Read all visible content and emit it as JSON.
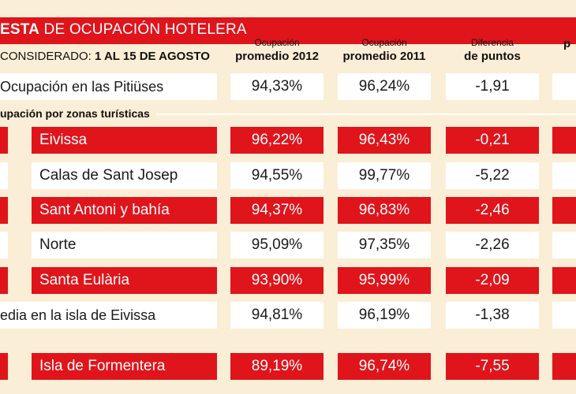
{
  "header": {
    "title_bold": "ESTA",
    "title_rest": " DE OCUPACIÓN HOTELERA",
    "period_label": "CONSIDERADO: ",
    "period_value": "1 AL 15 DE AGOSTO"
  },
  "columns": [
    {
      "line1": "Ocupación",
      "line2": "promedio 2012"
    },
    {
      "line1": "Ocupación",
      "line2": "promedio 2011"
    },
    {
      "line1": "Diferencia",
      "line2": "de puntos"
    },
    {
      "line1": "",
      "line2": "p"
    }
  ],
  "subheading": "upación por zonas turísticas",
  "rows": [
    {
      "label": "Ocupación en las Pitiüses",
      "v2012": "94,33%",
      "v2011": "96,24%",
      "diff": "-1,91",
      "style": "summary"
    },
    {
      "label": "Eivissa",
      "v2012": "96,22%",
      "v2011": "96,43%",
      "diff": "-0,21",
      "style": "red"
    },
    {
      "label": "Calas de Sant Josep",
      "v2012": "94,55%",
      "v2011": "99,77%",
      "diff": "-5,22",
      "style": "white"
    },
    {
      "label": "Sant Antoni y bahía",
      "v2012": "94,37%",
      "v2011": "96,83%",
      "diff": "-2,46",
      "style": "red"
    },
    {
      "label": "Norte",
      "v2012": "95,09%",
      "v2011": "97,35%",
      "diff": "-2,26",
      "style": "white"
    },
    {
      "label": "Santa Eulària",
      "v2012": "93,90%",
      "v2011": "95,99%",
      "diff": "-2,09",
      "style": "red"
    },
    {
      "label": "edia en la isla de Eivissa",
      "v2012": "94,81%",
      "v2011": "96,19%",
      "diff": "-1,38",
      "style": "summary"
    },
    {
      "label": "Isla de Formentera",
      "v2012": "89,19%",
      "v2011": "96,74%",
      "diff": "-7,55",
      "style": "red"
    }
  ],
  "colors": {
    "red": "#e0141b",
    "cream": "#fbeed6",
    "white": "#ffffff"
  },
  "chart_data": {
    "type": "table",
    "title": "ESTA DE OCUPACIÓN HOTELERA",
    "period": "1 AL 15 DE AGOSTO",
    "columns": [
      "Ocupación promedio 2012",
      "Ocupación promedio 2011",
      "Diferencia de puntos"
    ],
    "categories": [
      "Ocupación en las Pitiüses",
      "Eivissa",
      "Calas de Sant Josep",
      "Sant Antoni y bahía",
      "Norte",
      "Santa Eulària",
      "edia en la isla de Eivissa",
      "Isla de Formentera"
    ],
    "series": [
      {
        "name": "Ocupación promedio 2012",
        "values": [
          94.33,
          96.22,
          94.55,
          94.37,
          95.09,
          93.9,
          94.81,
          89.19
        ]
      },
      {
        "name": "Ocupación promedio 2011",
        "values": [
          96.24,
          96.43,
          99.77,
          96.83,
          97.35,
          95.99,
          96.19,
          96.74
        ]
      },
      {
        "name": "Diferencia de puntos",
        "values": [
          -1.91,
          -0.21,
          -5.22,
          -2.46,
          -2.26,
          -2.09,
          -1.38,
          -7.55
        ]
      }
    ]
  }
}
